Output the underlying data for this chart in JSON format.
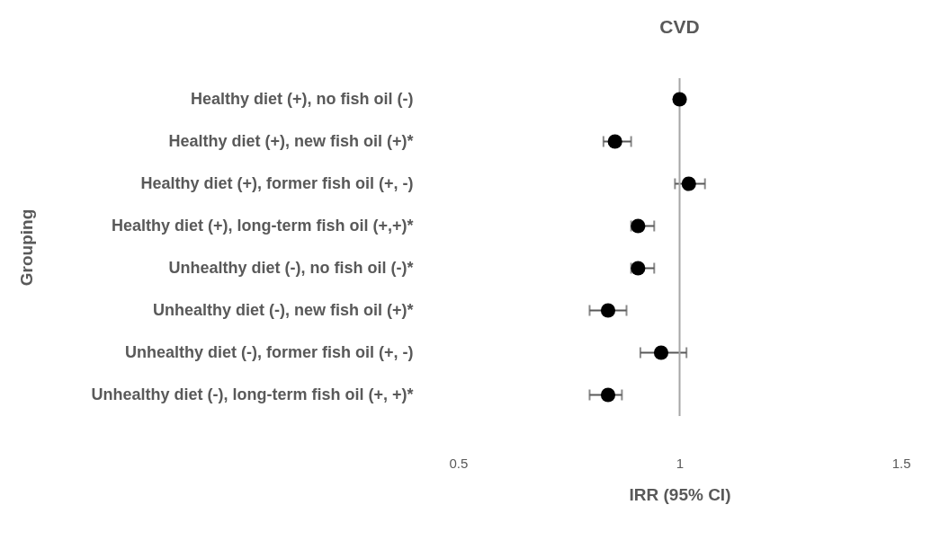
{
  "chart_data": {
    "type": "scatter",
    "orientation": "horizontal",
    "title": "CVD",
    "xlabel": "IRR (95% CI)",
    "ylabel": "Grouping",
    "categories": [
      "Healthy diet (+), no fish oil (-)",
      "Healthy diet (+), new fish oil (+)*",
      "Healthy diet (+), former fish oil (+, -)",
      "Healthy diet (+), long-term fish oil (+,+)*",
      "Unhealthy diet  (-), no fish oil (-)*",
      "Unhealthy diet  (-), new fish oil (+)*",
      "Unhealthy diet  (-), former fish oil (+, -)",
      "Unhealthy diet  (-), long-term fish oil (+, +)*"
    ],
    "series": [
      {
        "color": "#000000",
        "values": [
          1.0,
          0.86,
          1.02,
          0.91,
          0.91,
          0.845,
          0.96,
          0.845
        ],
        "errors": [
          null,
          [
            0.835,
            0.895
          ],
          [
            0.99,
            1.055
          ],
          [
            0.895,
            0.945
          ],
          [
            0.895,
            0.945
          ],
          [
            0.805,
            0.885
          ],
          [
            0.915,
            1.015
          ],
          [
            0.805,
            0.875
          ]
        ]
      }
    ],
    "xlim": [
      0.5,
      1.5
    ],
    "xticks": [
      0.5,
      1,
      1.5
    ],
    "ref_lines": [
      {
        "axis": "x",
        "value": 1,
        "color": "#a6a6a6"
      }
    ],
    "marker": "circle",
    "grid": false
  }
}
